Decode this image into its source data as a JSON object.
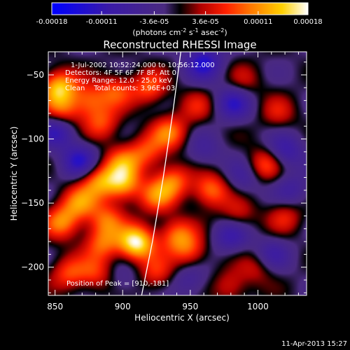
{
  "colorbar": {
    "tick_labels": [
      "-0.00018",
      "-0.00011",
      "-3.6e-05",
      "3.6e-05",
      "0.00011",
      "0.00018"
    ],
    "tick_values": [
      -0.00018,
      -0.00011,
      -3.6e-05,
      3.6e-05,
      0.00011,
      0.00018
    ],
    "units_prefix": "(photons cm",
    "units_exp1": "-2",
    "units_mid": " s",
    "units_exp2": "-1",
    "units_mid2": " asec",
    "units_exp3": "-2",
    "units_suffix": ")",
    "colors": [
      "#0000ff",
      "#3a1aa8",
      "#4a2a80",
      "#000000",
      "#b00000",
      "#ff2000",
      "#ff7a00",
      "#ffd000",
      "#ffffff"
    ]
  },
  "chart_data": {
    "type": "heatmap",
    "title": "Reconstructed RHESSI Image",
    "xlabel": "Heliocentric X (arcsec)",
    "ylabel": "Heliocentric Y (arcsec)",
    "xlim": [
      845,
      1036
    ],
    "ylim": [
      -222,
      -32
    ],
    "xticks": [
      850,
      900,
      950,
      1000
    ],
    "xtick_labels": [
      "850",
      "900",
      "950",
      "1000"
    ],
    "yticks": [
      -50,
      -100,
      -150,
      -200
    ],
    "ytick_labels": [
      "−50",
      "−100",
      "−150",
      "−200"
    ],
    "annotations": [
      "1-Jul-2002 10:52:24.000 to 10:56:12.000",
      "Detectors: 4F 5F 6F 7F 8F, Att 0",
      "Energy Range: 12.0 - 25.0 keV",
      "Clean    Total counts: 3.96E+03"
    ],
    "peak_label": "Position of Peak = [910,-181]",
    "peak": [
      910,
      -181
    ],
    "grid": false,
    "limb_curve": [
      [
        914,
        -222
      ],
      [
        922,
        -180
      ],
      [
        930,
        -130
      ],
      [
        937,
        -80
      ],
      [
        943,
        -32
      ]
    ],
    "sources": [
      {
        "x": 853,
        "y": -60,
        "amp": 0.8
      },
      {
        "x": 855,
        "y": -80,
        "amp": 0.55
      },
      {
        "x": 875,
        "y": -70,
        "amp": 0.5
      },
      {
        "x": 895,
        "y": -62,
        "amp": 0.45
      },
      {
        "x": 920,
        "y": -60,
        "amp": 0.5
      },
      {
        "x": 885,
        "y": -88,
        "amp": 0.45
      },
      {
        "x": 935,
        "y": -95,
        "amp": 0.55
      },
      {
        "x": 918,
        "y": -110,
        "amp": 0.45
      },
      {
        "x": 900,
        "y": -118,
        "amp": 0.5
      },
      {
        "x": 882,
        "y": -133,
        "amp": 0.6
      },
      {
        "x": 868,
        "y": -150,
        "amp": 0.55
      },
      {
        "x": 900,
        "y": -135,
        "amp": 0.7
      },
      {
        "x": 925,
        "y": -145,
        "amp": 0.5
      },
      {
        "x": 937,
        "y": -133,
        "amp": 0.55
      },
      {
        "x": 965,
        "y": -140,
        "amp": 0.6
      },
      {
        "x": 855,
        "y": -165,
        "amp": 0.6
      },
      {
        "x": 888,
        "y": -163,
        "amp": 0.5
      },
      {
        "x": 910,
        "y": -181,
        "amp": 1.0
      },
      {
        "x": 885,
        "y": -182,
        "amp": 0.5
      },
      {
        "x": 940,
        "y": -175,
        "amp": 0.55
      },
      {
        "x": 950,
        "y": -188,
        "amp": 0.45
      },
      {
        "x": 985,
        "y": -160,
        "amp": 0.35
      },
      {
        "x": 1005,
        "y": -120,
        "amp": 0.5
      },
      {
        "x": 1020,
        "y": -160,
        "amp": 0.35
      },
      {
        "x": 1000,
        "y": -200,
        "amp": 0.3
      },
      {
        "x": 860,
        "y": -205,
        "amp": 0.45
      },
      {
        "x": 880,
        "y": -205,
        "amp": 0.4
      },
      {
        "x": 925,
        "y": -205,
        "amp": 0.4
      },
      {
        "x": 980,
        "y": -215,
        "amp": 0.35
      },
      {
        "x": 955,
        "y": -75,
        "amp": 0.3
      },
      {
        "x": 990,
        "y": -55,
        "amp": 0.25
      },
      {
        "x": 1015,
        "y": -80,
        "amp": 0.3
      },
      {
        "x": 960,
        "y": -40,
        "amp": -0.6
      },
      {
        "x": 852,
        "y": -92,
        "amp": -0.6
      },
      {
        "x": 868,
        "y": -117,
        "amp": -0.55
      },
      {
        "x": 982,
        "y": -72,
        "amp": -0.5
      },
      {
        "x": 1020,
        "y": -110,
        "amp": -0.45
      },
      {
        "x": 980,
        "y": -175,
        "amp": -0.45
      },
      {
        "x": 1010,
        "y": -190,
        "amp": -0.35
      },
      {
        "x": 1025,
        "y": -140,
        "amp": -0.3
      },
      {
        "x": 990,
        "y": -130,
        "amp": -0.3
      },
      {
        "x": 960,
        "y": -110,
        "amp": -0.25
      },
      {
        "x": 950,
        "y": -210,
        "amp": -0.3
      },
      {
        "x": 900,
        "y": -210,
        "amp": -0.2
      }
    ]
  },
  "footer": {
    "timestamp": "11-Apr-2013 15:27"
  }
}
